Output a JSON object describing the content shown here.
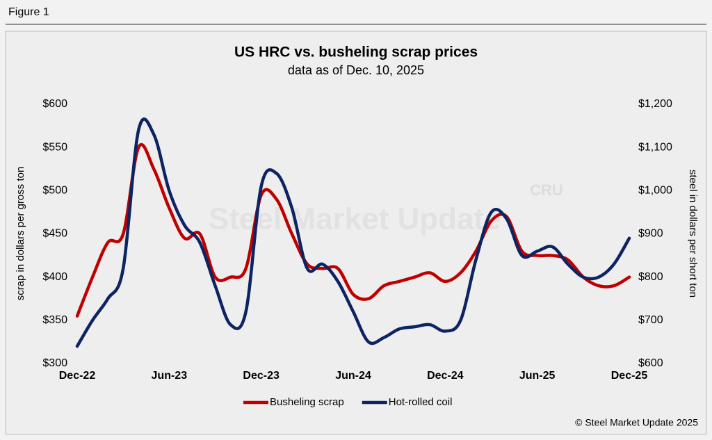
{
  "figure_label": "Figure 1",
  "source": "© Steel Market Update 2025",
  "chart_data": {
    "type": "line",
    "title": "US HRC vs. busheling scrap prices",
    "subtitle": "data as of Dec. 10, 2025",
    "watermark": "Steel Market Update",
    "watermark_logo": "CRU",
    "y_label": "scrap in dollars per gross ton",
    "y2_label": "steel in dollars per short ton",
    "categories": [
      "Dec-22",
      null,
      null,
      null,
      null,
      null,
      "Jun-23",
      null,
      null,
      null,
      null,
      null,
      "Dec-23",
      null,
      null,
      null,
      null,
      null,
      "Jun-24",
      null,
      null,
      null,
      null,
      null,
      "Dec-24",
      null,
      null,
      null,
      null,
      null,
      "Jun-25",
      null,
      null,
      null,
      null,
      null,
      "Dec-25"
    ],
    "ylim": [
      300,
      600
    ],
    "yticks": [
      {
        "value": 300,
        "label": "$300"
      },
      {
        "value": 350,
        "label": "$350"
      },
      {
        "value": 400,
        "label": "$400"
      },
      {
        "value": 450,
        "label": "$450"
      },
      {
        "value": 500,
        "label": "$500"
      },
      {
        "value": 550,
        "label": "$550"
      },
      {
        "value": 600,
        "label": "$600"
      }
    ],
    "y2lim": [
      600,
      1200
    ],
    "y2ticks": [
      {
        "value": 600,
        "label": "$600"
      },
      {
        "value": 700,
        "label": "$700"
      },
      {
        "value": 800,
        "label": "$800"
      },
      {
        "value": 900,
        "label": "$900"
      },
      {
        "value": 1000,
        "label": "$1,000"
      },
      {
        "value": 1100,
        "label": "$1,100"
      },
      {
        "value": 1200,
        "label": "$1,200"
      }
    ],
    "legend": "bottom",
    "series": [
      {
        "name": "Busheling scrap",
        "color": "#c00000",
        "axis": "y",
        "values": [
          355,
          400,
          440,
          450,
          550,
          525,
          480,
          445,
          450,
          400,
          400,
          410,
          495,
          490,
          450,
          415,
          410,
          410,
          380,
          375,
          390,
          395,
          400,
          405,
          395,
          405,
          430,
          465,
          470,
          430,
          425,
          425,
          420,
          400,
          390,
          390,
          400
        ]
      },
      {
        "name": "Hot-rolled coil",
        "color": "#0d2463",
        "axis": "y2",
        "values": [
          640,
          700,
          750,
          820,
          1140,
          1130,
          1000,
          920,
          880,
          780,
          690,
          720,
          1010,
          1040,
          960,
          820,
          830,
          790,
          720,
          650,
          660,
          680,
          685,
          690,
          675,
          700,
          840,
          950,
          935,
          850,
          860,
          870,
          830,
          800,
          800,
          830,
          890
        ]
      }
    ]
  }
}
